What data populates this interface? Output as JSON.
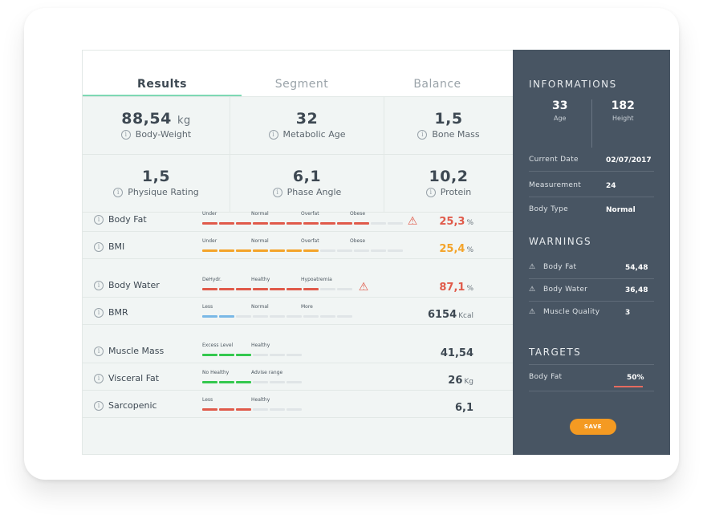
{
  "tabs": [
    {
      "label": "Results"
    },
    {
      "label": "Segment"
    },
    {
      "label": "Balance"
    }
  ],
  "cards": [
    {
      "value": "88,54",
      "unit": "kg",
      "label": "Body-Weight"
    },
    {
      "value": "32",
      "unit": "",
      "label": "Metabolic Age"
    },
    {
      "value": "1,5",
      "unit": "",
      "label": "Bone Mass"
    },
    {
      "value": "1,5",
      "unit": "",
      "label": "Physique Rating"
    },
    {
      "value": "6,1",
      "unit": "",
      "label": "Phase Angle"
    },
    {
      "value": "10,2",
      "unit": "",
      "label": "Protein"
    }
  ],
  "metrics": {
    "body_fat": {
      "name": "Body Fat",
      "labels": [
        "Under",
        "Normal",
        "Overfat",
        "Obese"
      ],
      "value": "25,3",
      "unit": "%",
      "level": 0.8,
      "color": "#e05a4a"
    },
    "bmi": {
      "name": "BMI",
      "labels": [
        "Under",
        "Normal",
        "Overfat",
        "Obese"
      ],
      "value": "25,4",
      "unit": "%",
      "level": 0.55,
      "color": "#f4a42a"
    },
    "body_water": {
      "name": "Body Water",
      "labels": [
        "DeHydr.",
        "Healthy",
        "Hypoatremia"
      ],
      "value": "87,1",
      "unit": "%",
      "level": 0.8,
      "color": "#e05a4a"
    },
    "bmr": {
      "name": "BMR",
      "labels": [
        "Less",
        "Normal",
        "More"
      ],
      "value": "6154",
      "unit": "Kcal",
      "level": 0.27,
      "color": "#79b8e6"
    },
    "muscle_mass": {
      "name": "Muscle Mass",
      "labels": [
        "Excess Level",
        "Healthy"
      ],
      "value": "41,54",
      "unit": "",
      "level": 0.5,
      "color": "#34c84e"
    },
    "visceral_fat": {
      "name": "Visceral Fat",
      "labels": [
        "No Healthy",
        "Advise range"
      ],
      "value": "26",
      "unit": "Kg",
      "level": 0.5,
      "color": "#34c84e"
    },
    "sarcopenic": {
      "name": "Sarcopenic",
      "labels": [
        "Less",
        "Healthy"
      ],
      "value": "6,1",
      "unit": "",
      "level": 0.5,
      "color": "#e05a4a"
    }
  },
  "side": {
    "info_title": "INFORMATIONS",
    "age_value": "33",
    "age_label": "Age",
    "height_value": "182",
    "height_label": "Height",
    "current_date_label": "Current Date",
    "current_date_value": "02/07/2017",
    "measurement_label": "Measurement",
    "measurement_value": "24",
    "body_type_label": "Body Type",
    "body_type_value": "Normal",
    "warnings_title": "WARNINGS",
    "warnings": [
      {
        "label": "Body Fat",
        "value": "54,48"
      },
      {
        "label": "Body Water",
        "value": "36,48"
      },
      {
        "label": "Muscle Quality",
        "value": "3"
      }
    ],
    "targets_title": "TARGETS",
    "target_label": "Body Fat",
    "target_value": "50%",
    "save_label": "SAVE"
  },
  "colors": {
    "accent_tab": "#7ed8b4",
    "sidebar": "#485563",
    "save": "#f49a22",
    "warning": "#e05a4a"
  }
}
